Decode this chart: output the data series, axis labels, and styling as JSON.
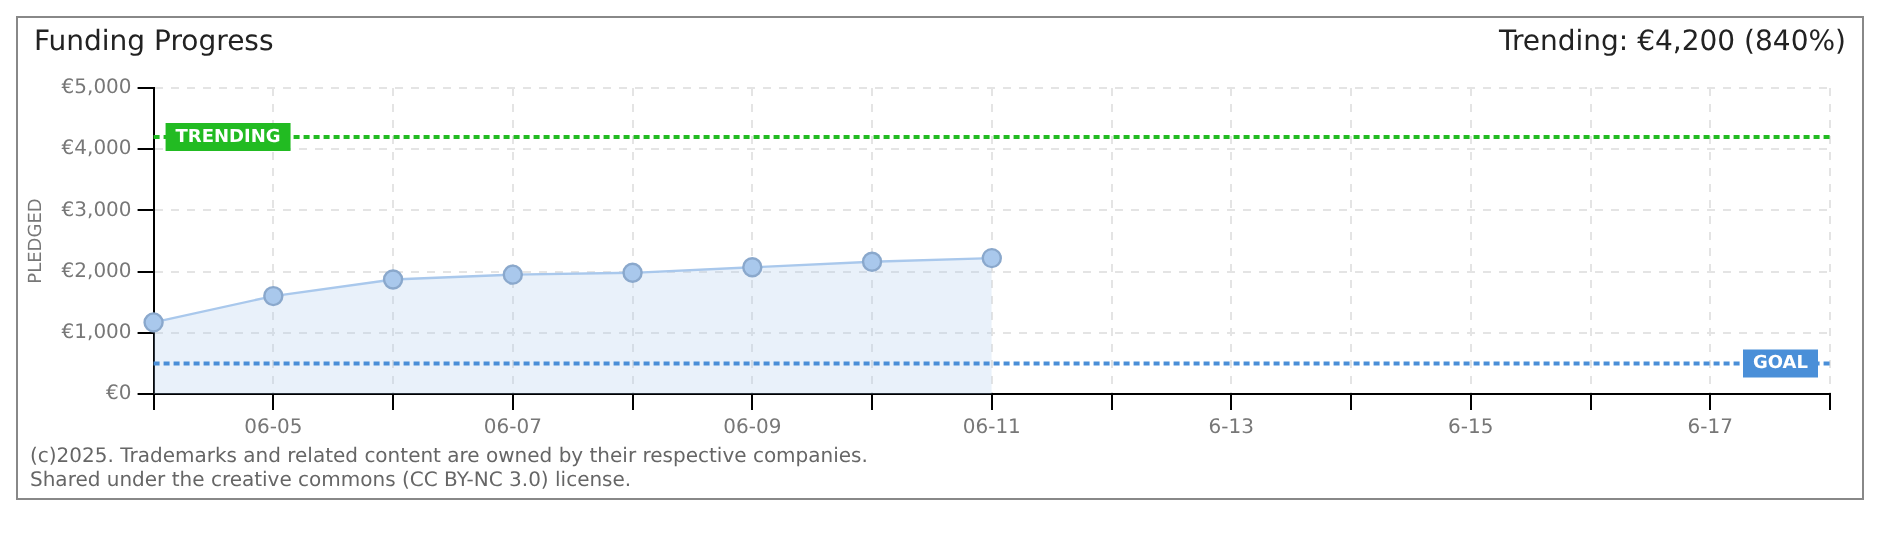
{
  "chart_data": {
    "type": "area",
    "title": "Funding Progress",
    "subtitle": "Trending: €4,200 (840%)",
    "ylabel": "PLEDGED",
    "categories": [
      null,
      "06-05",
      null,
      "06-07",
      null,
      "06-09",
      null,
      "06-11",
      null,
      "6-13",
      null,
      "6-15",
      null,
      "6-17",
      null
    ],
    "series": [
      {
        "color": "#a9c8ec",
        "values": [
          1170,
          1600,
          1870,
          1950,
          1980,
          2070,
          2160,
          2220,
          null,
          null,
          null,
          null,
          null,
          null,
          null
        ]
      }
    ],
    "ylim": [
      0,
      5000
    ],
    "yticks": [
      {
        "value": 0,
        "label": "€0"
      },
      {
        "value": 1000,
        "label": "€1,000"
      },
      {
        "value": 2000,
        "label": "€2,000"
      },
      {
        "value": 3000,
        "label": "€3,000"
      },
      {
        "value": 4000,
        "label": "€4,000"
      },
      {
        "value": 5000,
        "label": "€5,000"
      }
    ],
    "ref_lines": [
      {
        "axis": "y",
        "value": 4200,
        "label": "TRENDING",
        "color": "#22bb22",
        "line_style": "dotted"
      },
      {
        "axis": "y",
        "value": 500,
        "label": "GOAL",
        "color": "#4a8fd8",
        "line_style": "dotted"
      }
    ],
    "grid": true,
    "marker": "circle",
    "legend": false,
    "annotations": [
      "(c)2025. Trademarks and related content are owned by their respective companies.",
      "Shared under the creative commons (CC BY-NC 3.0) license."
    ]
  }
}
